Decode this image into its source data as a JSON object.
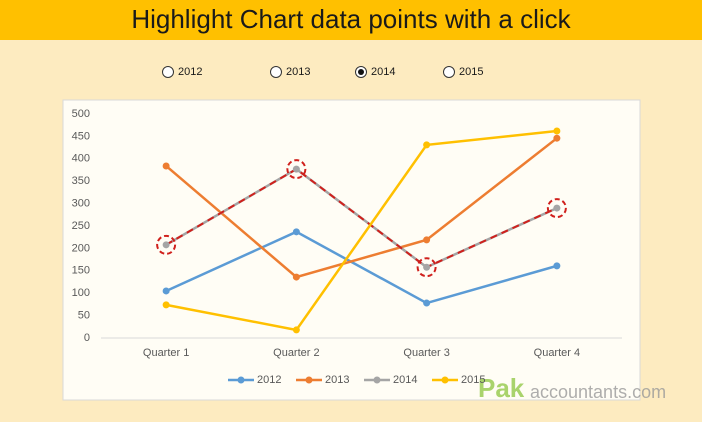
{
  "header": {
    "title": "Highlight Chart data points with a click"
  },
  "options": [
    "2012",
    "2013",
    "2014",
    "2015"
  ],
  "chart_data": {
    "type": "line",
    "categories": [
      "Quarter 1",
      "Quarter 2",
      "Quarter 3",
      "Quarter 4"
    ],
    "series": [
      {
        "name": "2012",
        "color": "#5b9bd5",
        "values": [
          105,
          237,
          78,
          161
        ]
      },
      {
        "name": "2013",
        "color": "#ed7d31",
        "values": [
          384,
          136,
          219,
          446
        ]
      },
      {
        "name": "2014",
        "color": "#a5a5a5",
        "values": [
          208,
          377,
          158,
          290
        ]
      },
      {
        "name": "2015",
        "color": "#ffc000",
        "values": [
          74,
          18,
          431,
          462
        ]
      }
    ],
    "ylim": [
      0,
      500
    ],
    "yticks": [
      0,
      50,
      100,
      150,
      200,
      250,
      300,
      350,
      400,
      450,
      500
    ],
    "grid": false,
    "legend": "bottom",
    "selected": 2,
    "highlight_color": "#d0201c"
  },
  "watermark": {
    "brand": "Pak",
    "rest": "accountants.com"
  }
}
